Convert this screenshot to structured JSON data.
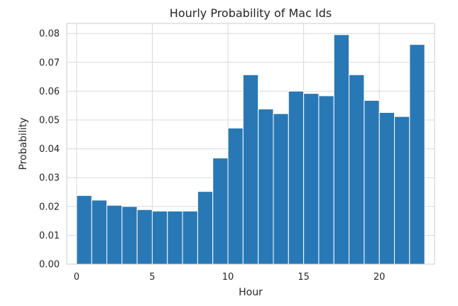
{
  "chart_data": {
    "type": "bar",
    "title": "Hourly Probability of Mac Ids",
    "xlabel": "Hour",
    "ylabel": "Probability",
    "xlim": [
      -0.65,
      23.65
    ],
    "ylim": [
      0,
      0.0835
    ],
    "xticks": [
      0,
      5,
      10,
      15,
      20
    ],
    "yticks": [
      0.0,
      0.01,
      0.02,
      0.03,
      0.04,
      0.05,
      0.06,
      0.07,
      0.08
    ],
    "ytick_labels": [
      "0.00",
      "0.01",
      "0.02",
      "0.03",
      "0.04",
      "0.05",
      "0.06",
      "0.07",
      "0.08"
    ],
    "bin_start": 0,
    "bin_end": 23,
    "grid": true,
    "bar_color": "#2878b5",
    "values": [
      0.0238,
      0.0222,
      0.0204,
      0.02,
      0.0189,
      0.0184,
      0.0184,
      0.0184,
      0.0252,
      0.0368,
      0.0472,
      0.0657,
      0.0538,
      0.0522,
      0.06,
      0.0592,
      0.0584,
      0.0796,
      0.0657,
      0.0568,
      0.0526,
      0.0512,
      0.0762
    ]
  }
}
